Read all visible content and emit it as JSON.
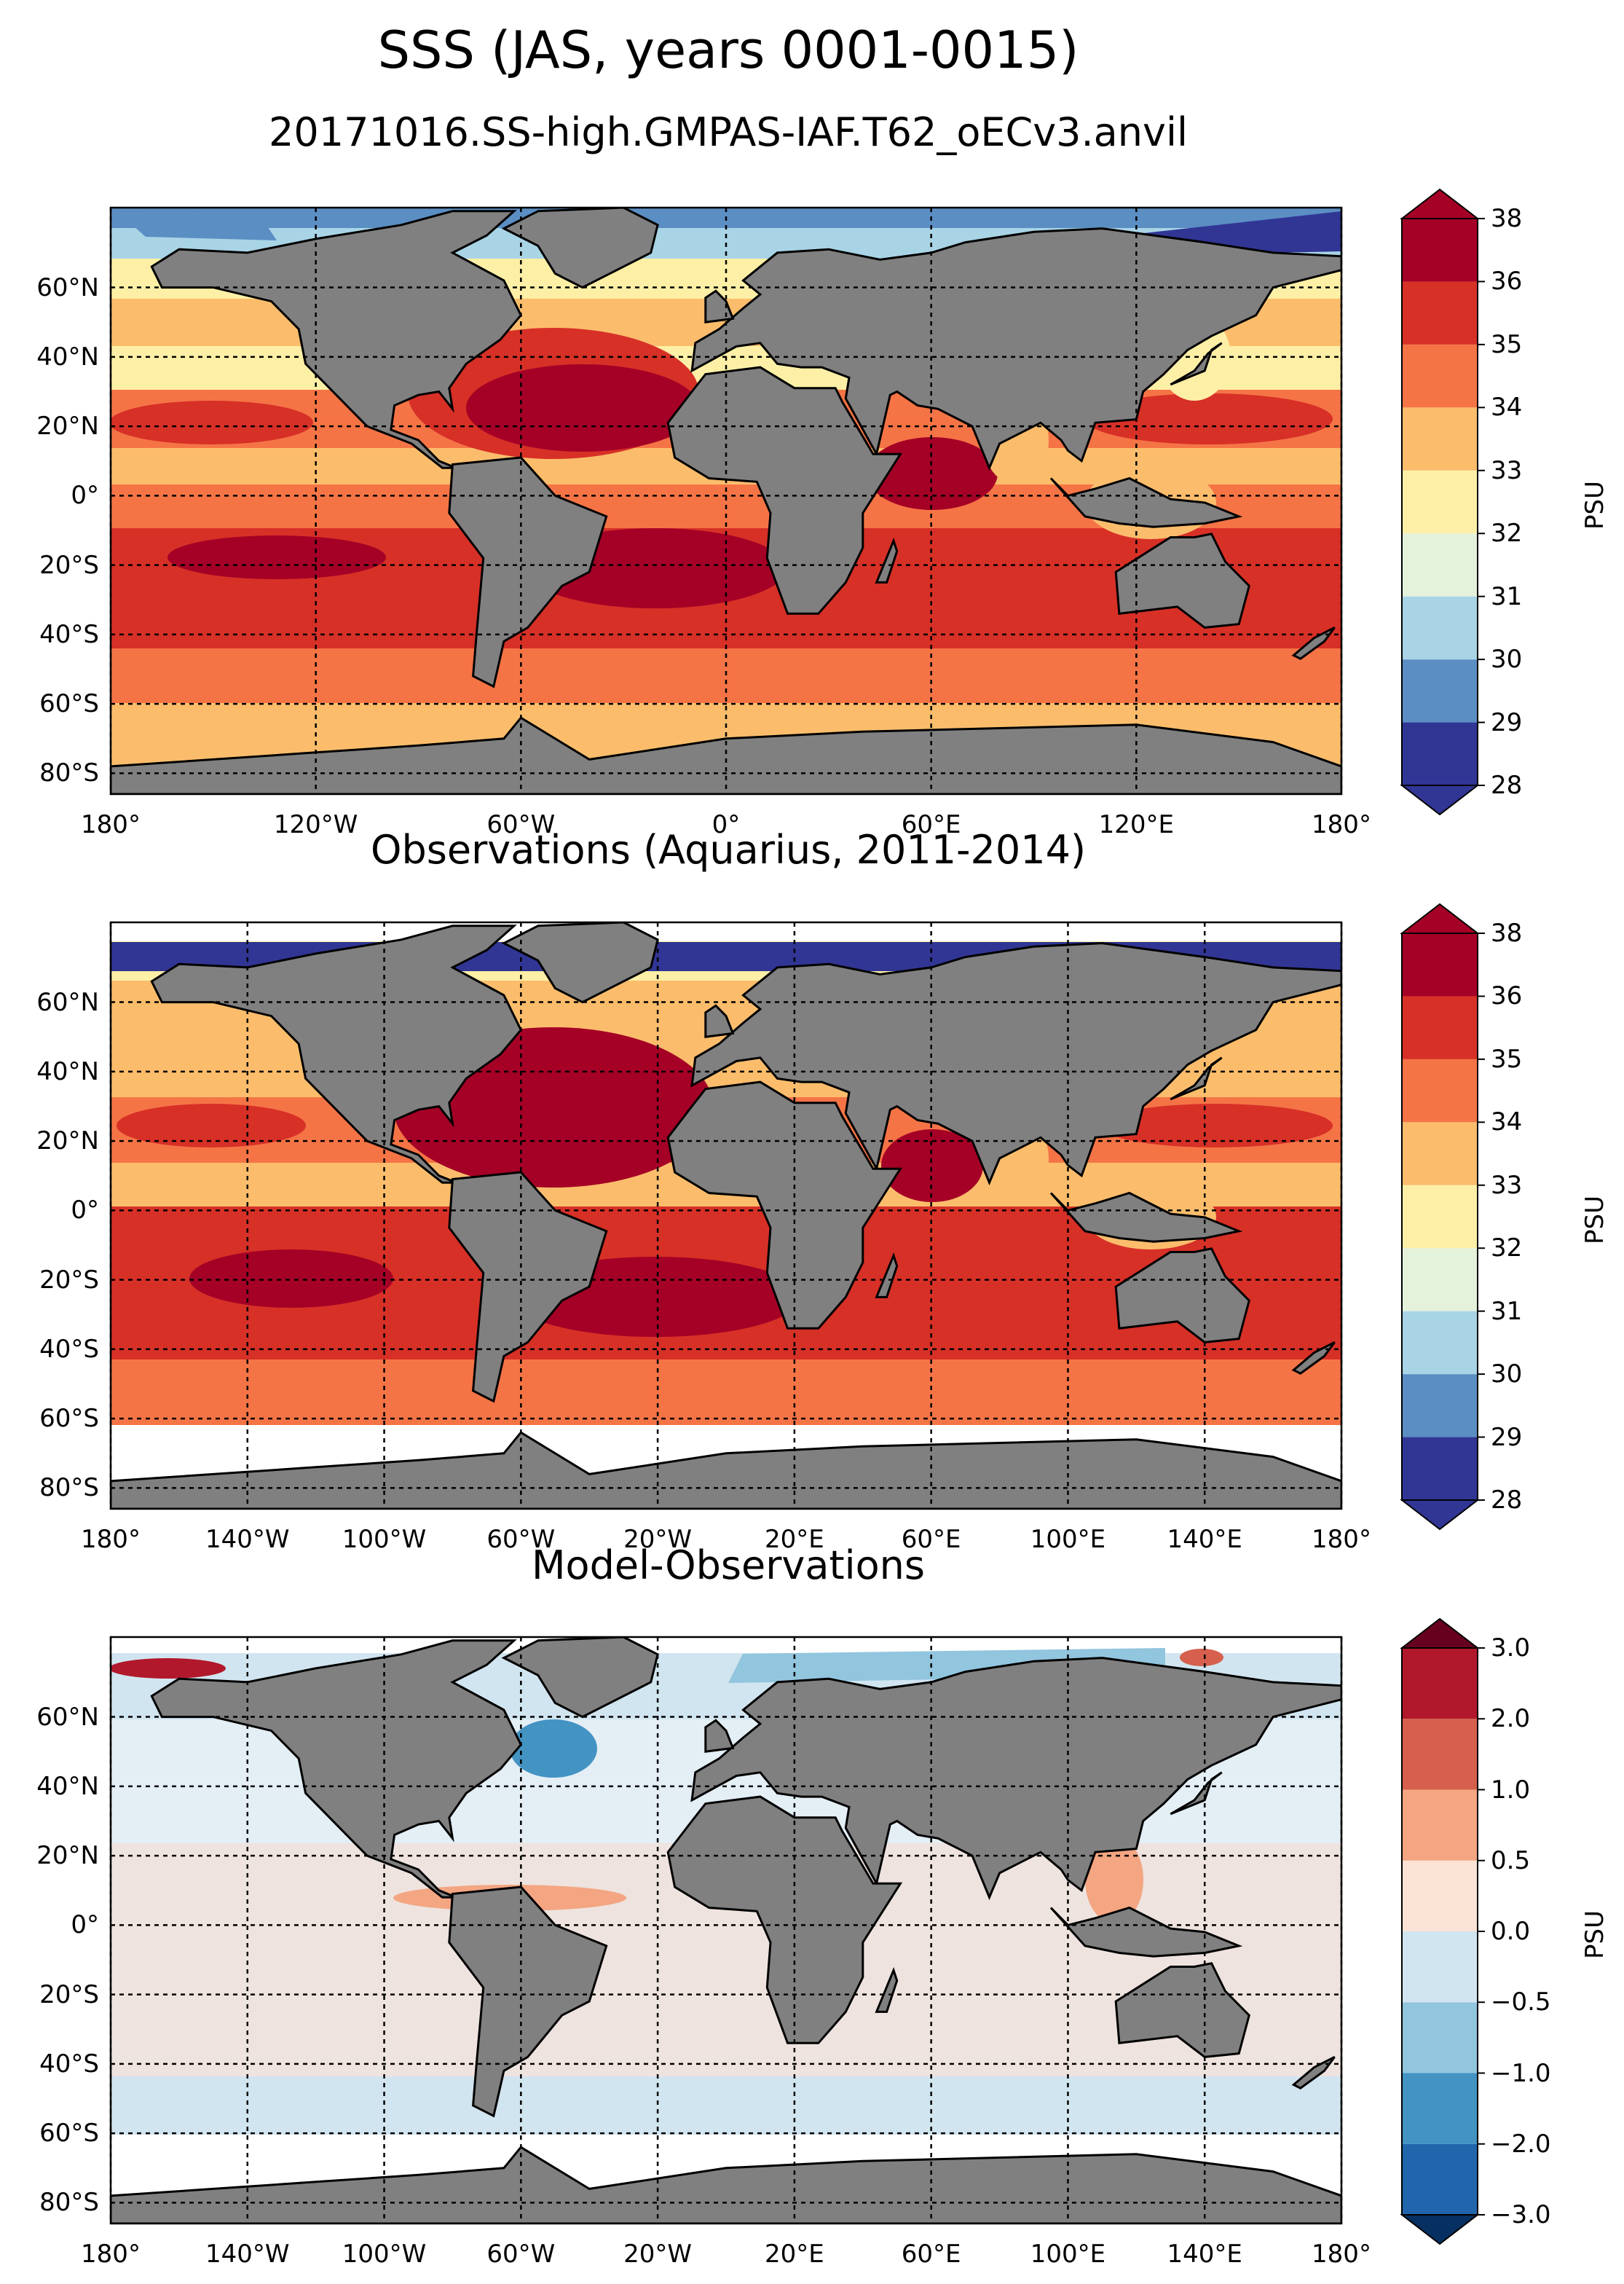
{
  "figure": {
    "title": "SSS (JAS, years 0001-0015)",
    "subtitle": "20171016.SS-high.GMPAS-IAF.T62_oECv3.anvil"
  },
  "lat_labels": [
    "60°N",
    "40°N",
    "20°N",
    "0°",
    "20°S",
    "40°S",
    "60°S",
    "80°S"
  ],
  "lat_values": [
    60,
    40,
    20,
    0,
    -20,
    -40,
    -60,
    -80
  ],
  "panels": [
    {
      "id": "model",
      "title": "",
      "lon_labels": [
        "180°",
        "120°W",
        "60°W",
        "0°",
        "60°E",
        "120°E",
        "180°"
      ],
      "lon_values": [
        -180,
        -120,
        -60,
        0,
        60,
        120,
        180
      ],
      "colorbar": {
        "label": "PSU",
        "ticks": [
          "28",
          "29",
          "30",
          "31",
          "32",
          "33",
          "34",
          "35",
          "36",
          "38"
        ],
        "colors": [
          "#313695",
          "#5b8ec3",
          "#a9d4e6",
          "#e4f2dc",
          "#fdf0a6",
          "#fbbd6c",
          "#f57446",
          "#d73027",
          "#a50026"
        ],
        "extend_low": "#313695",
        "extend_high": "#a50026"
      }
    },
    {
      "id": "obs",
      "title": "Observations (Aquarius, 2011-2014)",
      "lon_labels": [
        "180°",
        "140°W",
        "100°W",
        "60°W",
        "20°W",
        "20°E",
        "60°E",
        "100°E",
        "140°E",
        "180°"
      ],
      "lon_values": [
        -180,
        -140,
        -100,
        -60,
        -20,
        20,
        60,
        100,
        140,
        180
      ],
      "colorbar": {
        "label": "PSU",
        "ticks": [
          "28",
          "29",
          "30",
          "31",
          "32",
          "33",
          "34",
          "35",
          "36",
          "38"
        ],
        "colors": [
          "#313695",
          "#5b8ec3",
          "#a9d4e6",
          "#e4f2dc",
          "#fdf0a6",
          "#fbbd6c",
          "#f57446",
          "#d73027",
          "#a50026"
        ],
        "extend_low": "#313695",
        "extend_high": "#a50026"
      }
    },
    {
      "id": "diff",
      "title": "Model-Observations",
      "lon_labels": [
        "180°",
        "140°W",
        "100°W",
        "60°W",
        "20°W",
        "20°E",
        "60°E",
        "100°E",
        "140°E",
        "180°"
      ],
      "lon_values": [
        -180,
        -140,
        -100,
        -60,
        -20,
        20,
        60,
        100,
        140,
        180
      ],
      "colorbar": {
        "label": "PSU",
        "ticks": [
          "−3.0",
          "−2.0",
          "−1.0",
          "−0.5",
          "0.0",
          "0.5",
          "1.0",
          "2.0",
          "3.0"
        ],
        "colors": [
          "#2166ac",
          "#4393c3",
          "#92c5de",
          "#d1e5f0",
          "#fbe3d6",
          "#f4a582",
          "#d6604d",
          "#b2182b"
        ],
        "extend_low": "#053061",
        "extend_high": "#67001f"
      }
    }
  ],
  "colors": {
    "land": "#808080",
    "no_data": "#ffffff",
    "grid": "#000000"
  }
}
